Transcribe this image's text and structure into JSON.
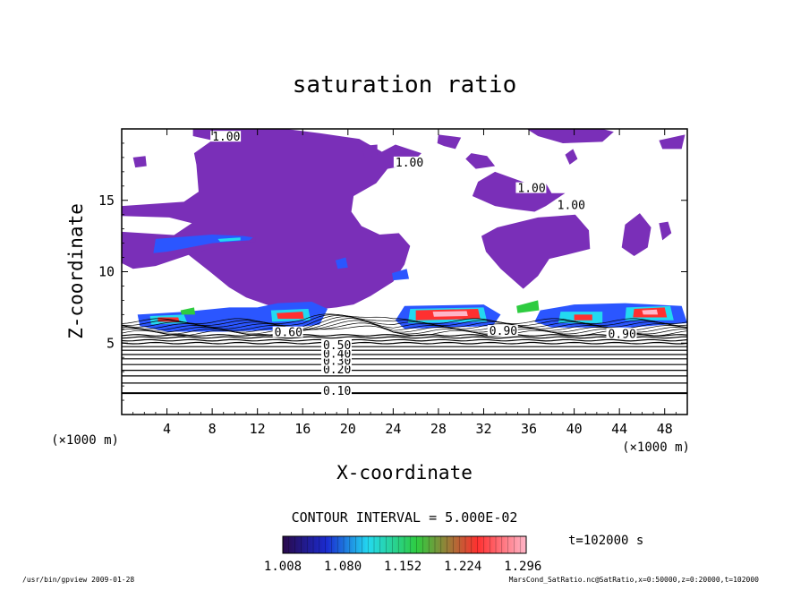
{
  "chart_data": {
    "type": "contour",
    "title": "saturation ratio",
    "xlabel": "X-coordinate",
    "ylabel": "Z-coordinate",
    "x_unit": "(×1000 m)",
    "y_unit": "(×1000 m)",
    "xlim": [
      0,
      50
    ],
    "ylim": [
      0,
      20
    ],
    "x_ticks": [
      4,
      8,
      12,
      16,
      20,
      24,
      28,
      32,
      36,
      40,
      44,
      48
    ],
    "y_ticks": [
      5,
      10,
      15
    ],
    "grid": false,
    "contour_interval_text": "CONTOUR INTERVAL = 5.000E-02",
    "contour_labels": [
      {
        "text": "0.10",
        "x": 17.8,
        "z": 1.5
      },
      {
        "text": "0.20",
        "x": 17.8,
        "z": 3.0
      },
      {
        "text": "0.30",
        "x": 17.8,
        "z": 3.6
      },
      {
        "text": "0.40",
        "x": 17.8,
        "z": 4.1
      },
      {
        "text": "0.50",
        "x": 17.8,
        "z": 4.7
      },
      {
        "text": "0.60",
        "x": 13.5,
        "z": 5.6
      },
      {
        "text": "0.90",
        "x": 32.5,
        "z": 5.7
      },
      {
        "text": "0.90",
        "x": 43.0,
        "z": 5.5
      },
      {
        "text": "1.00",
        "x": 8.0,
        "z": 19.3
      },
      {
        "text": "1.00",
        "x": 24.2,
        "z": 17.5
      },
      {
        "text": "1.00",
        "x": 35.0,
        "z": 15.7
      },
      {
        "text": "1.00",
        "x": 38.5,
        "z": 14.5
      }
    ],
    "colorbar": {
      "ticks": [
        "1.008",
        "1.080",
        "1.152",
        "1.224",
        "1.296"
      ],
      "min": 1.008,
      "max": 1.3
    },
    "time_label": "t=102000 s",
    "footer_left": "/usr/bin/gpview   2009-01-28",
    "footer_right": "MarsCond_SatRatio.nc@SatRatio,x=0:50000,z=0:20000,t=102000",
    "colors": {
      "purple_region": "#7a2fb8",
      "bar_low": "#2a0a4a",
      "bar_mid_blue": "#2b56ff",
      "bar_cyan": "#23d9f0",
      "bar_green": "#2ecc40",
      "bar_red": "#ff3030",
      "bar_high": "#ffb6c8"
    }
  }
}
